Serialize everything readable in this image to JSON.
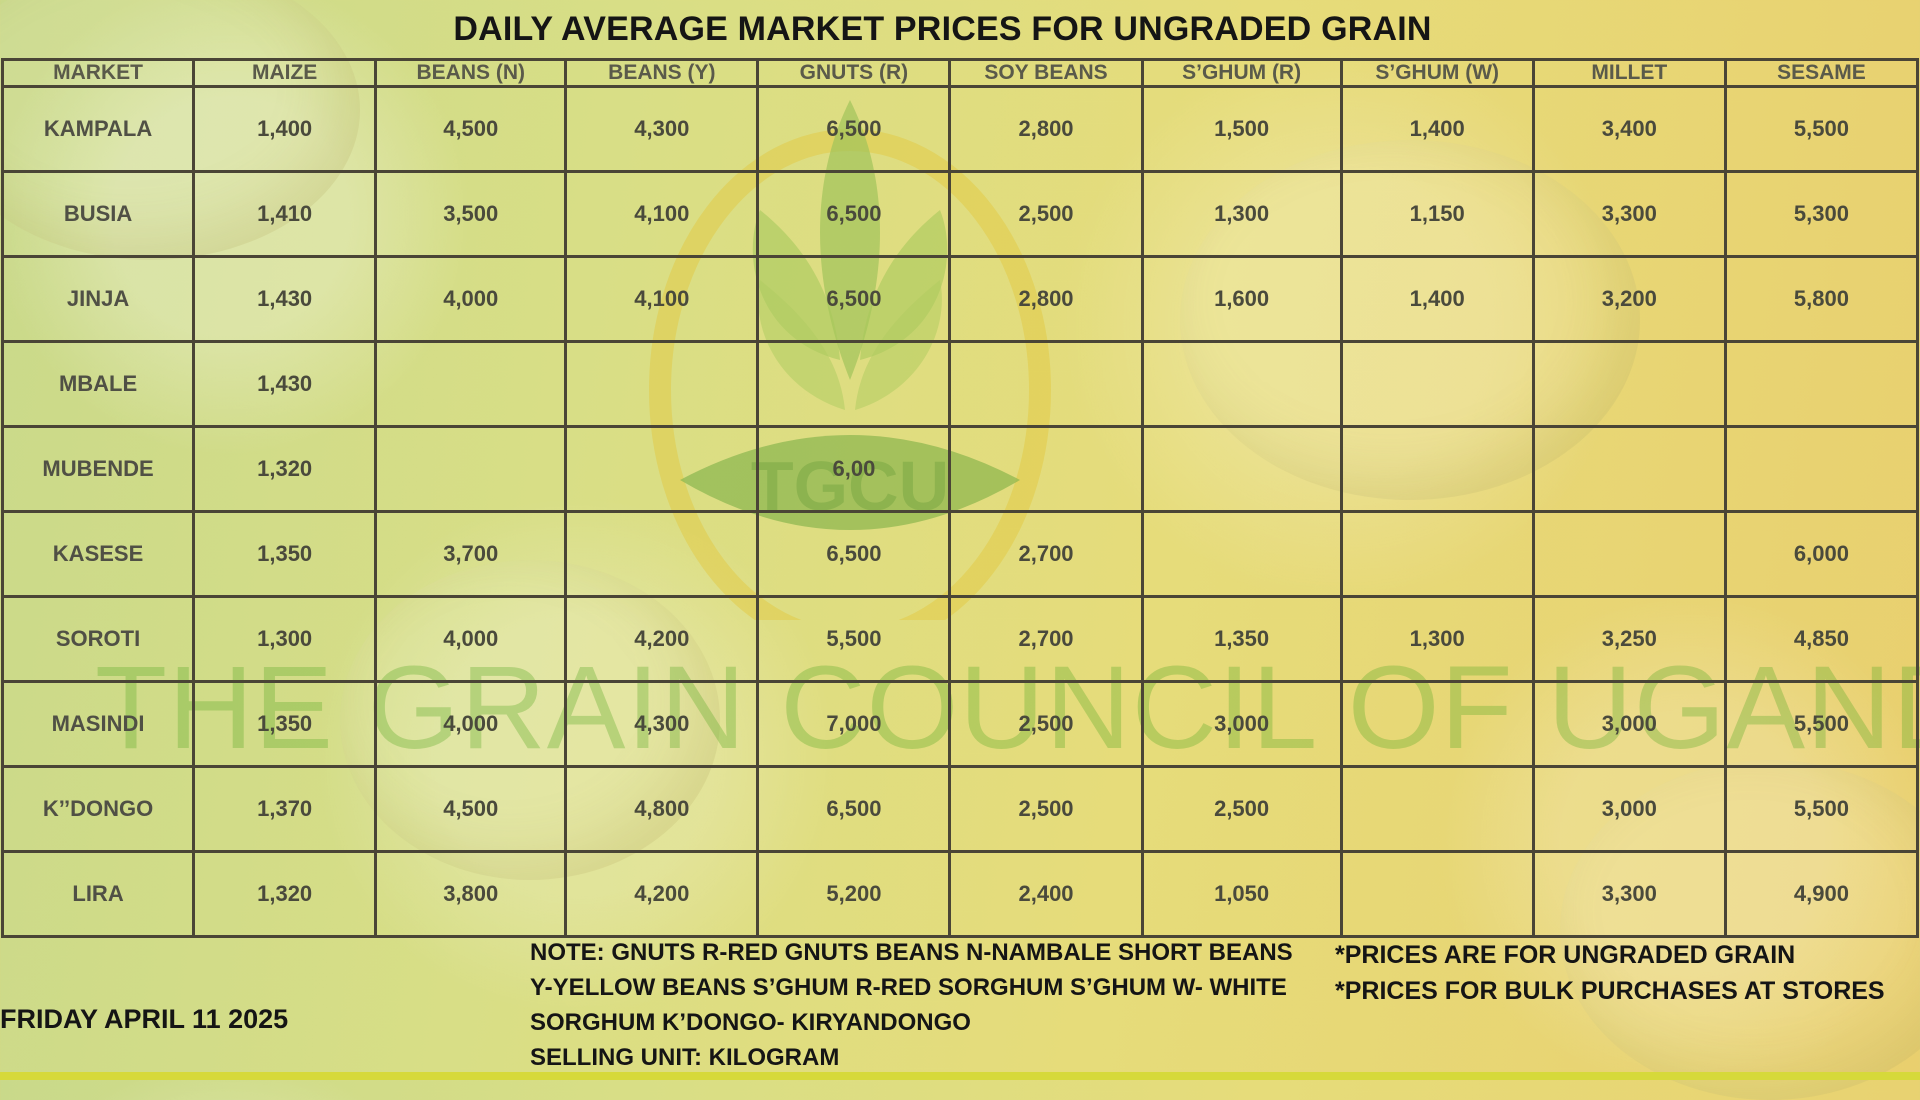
{
  "title": "DAILY AVERAGE MARKET PRICES FOR UNGRADED GRAIN",
  "table": {
    "headers": [
      "MARKET",
      "MAIZE",
      "BEANS (N)",
      "BEANS (Y)",
      "GNUTS (R)",
      "SOY BEANS",
      "S’GHUM (R)",
      "S’GHUM (W)",
      "MILLET",
      "SESAME"
    ],
    "rows": [
      [
        "KAMPALA",
        "1,400",
        "4,500",
        "4,300",
        "6,500",
        "2,800",
        "1,500",
        "1,400",
        "3,400",
        "5,500"
      ],
      [
        "BUSIA",
        "1,410",
        "3,500",
        "4,100",
        "6,500",
        "2,500",
        "1,300",
        "1,150",
        "3,300",
        "5,300"
      ],
      [
        "JINJA",
        "1,430",
        "4,000",
        "4,100",
        "6,500",
        "2,800",
        "1,600",
        "1,400",
        "3,200",
        "5,800"
      ],
      [
        "MBALE",
        "1,430",
        "",
        "",
        "",
        "",
        "",
        "",
        "",
        ""
      ],
      [
        "MUBENDE",
        "1,320",
        "",
        "",
        "6,00",
        "",
        "",
        "",
        "",
        ""
      ],
      [
        "KASESE",
        "1,350",
        "3,700",
        "",
        "6,500",
        "2,700",
        "",
        "",
        "",
        "6,000"
      ],
      [
        "SOROTI",
        "1,300",
        "4,000",
        "4,200",
        "5,500",
        "2,700",
        "1,350",
        "1,300",
        "3,250",
        "4,850"
      ],
      [
        "MASINDI",
        "1,350",
        "4,000",
        "4,300",
        "7,000",
        "2,500",
        "3,000",
        "",
        "3,000",
        "5,500"
      ],
      [
        "K’’DONGO",
        "1,370",
        "4,500",
        "4,800",
        "6,500",
        "2,500",
        "2,500",
        "",
        "3,000",
        "5,500"
      ],
      [
        "LIRA",
        "1,320",
        "3,800",
        "4,200",
        "5,200",
        "2,400",
        "1,050",
        "",
        "3,300",
        "4,900"
      ]
    ]
  },
  "watermark": {
    "logo_text": "TGCU",
    "org_name": "THE GRAIN COUNCIL OF UGANDA"
  },
  "date": "FRIDAY APRIL 11 2025",
  "note_lines": [
    "NOTE: GNUTS R-RED GNUTS  BEANS N-NAMBALE SHORT BEANS",
    "Y-YELLOW BEANS  S’GHUM R-RED SORGHUM  S’GHUM W- WHITE",
    "SORGHUM K’DONGO- KIRYANDONGO",
    "SELLING UNIT: KILOGRAM"
  ],
  "side_notes": [
    "*PRICES ARE FOR UNGRADED GRAIN",
    "*PRICES FOR BULK PURCHASES AT STORES"
  ],
  "colors": {
    "grid": "#4a4536",
    "text": "#151515",
    "watermark_green": "#5aaa28"
  }
}
